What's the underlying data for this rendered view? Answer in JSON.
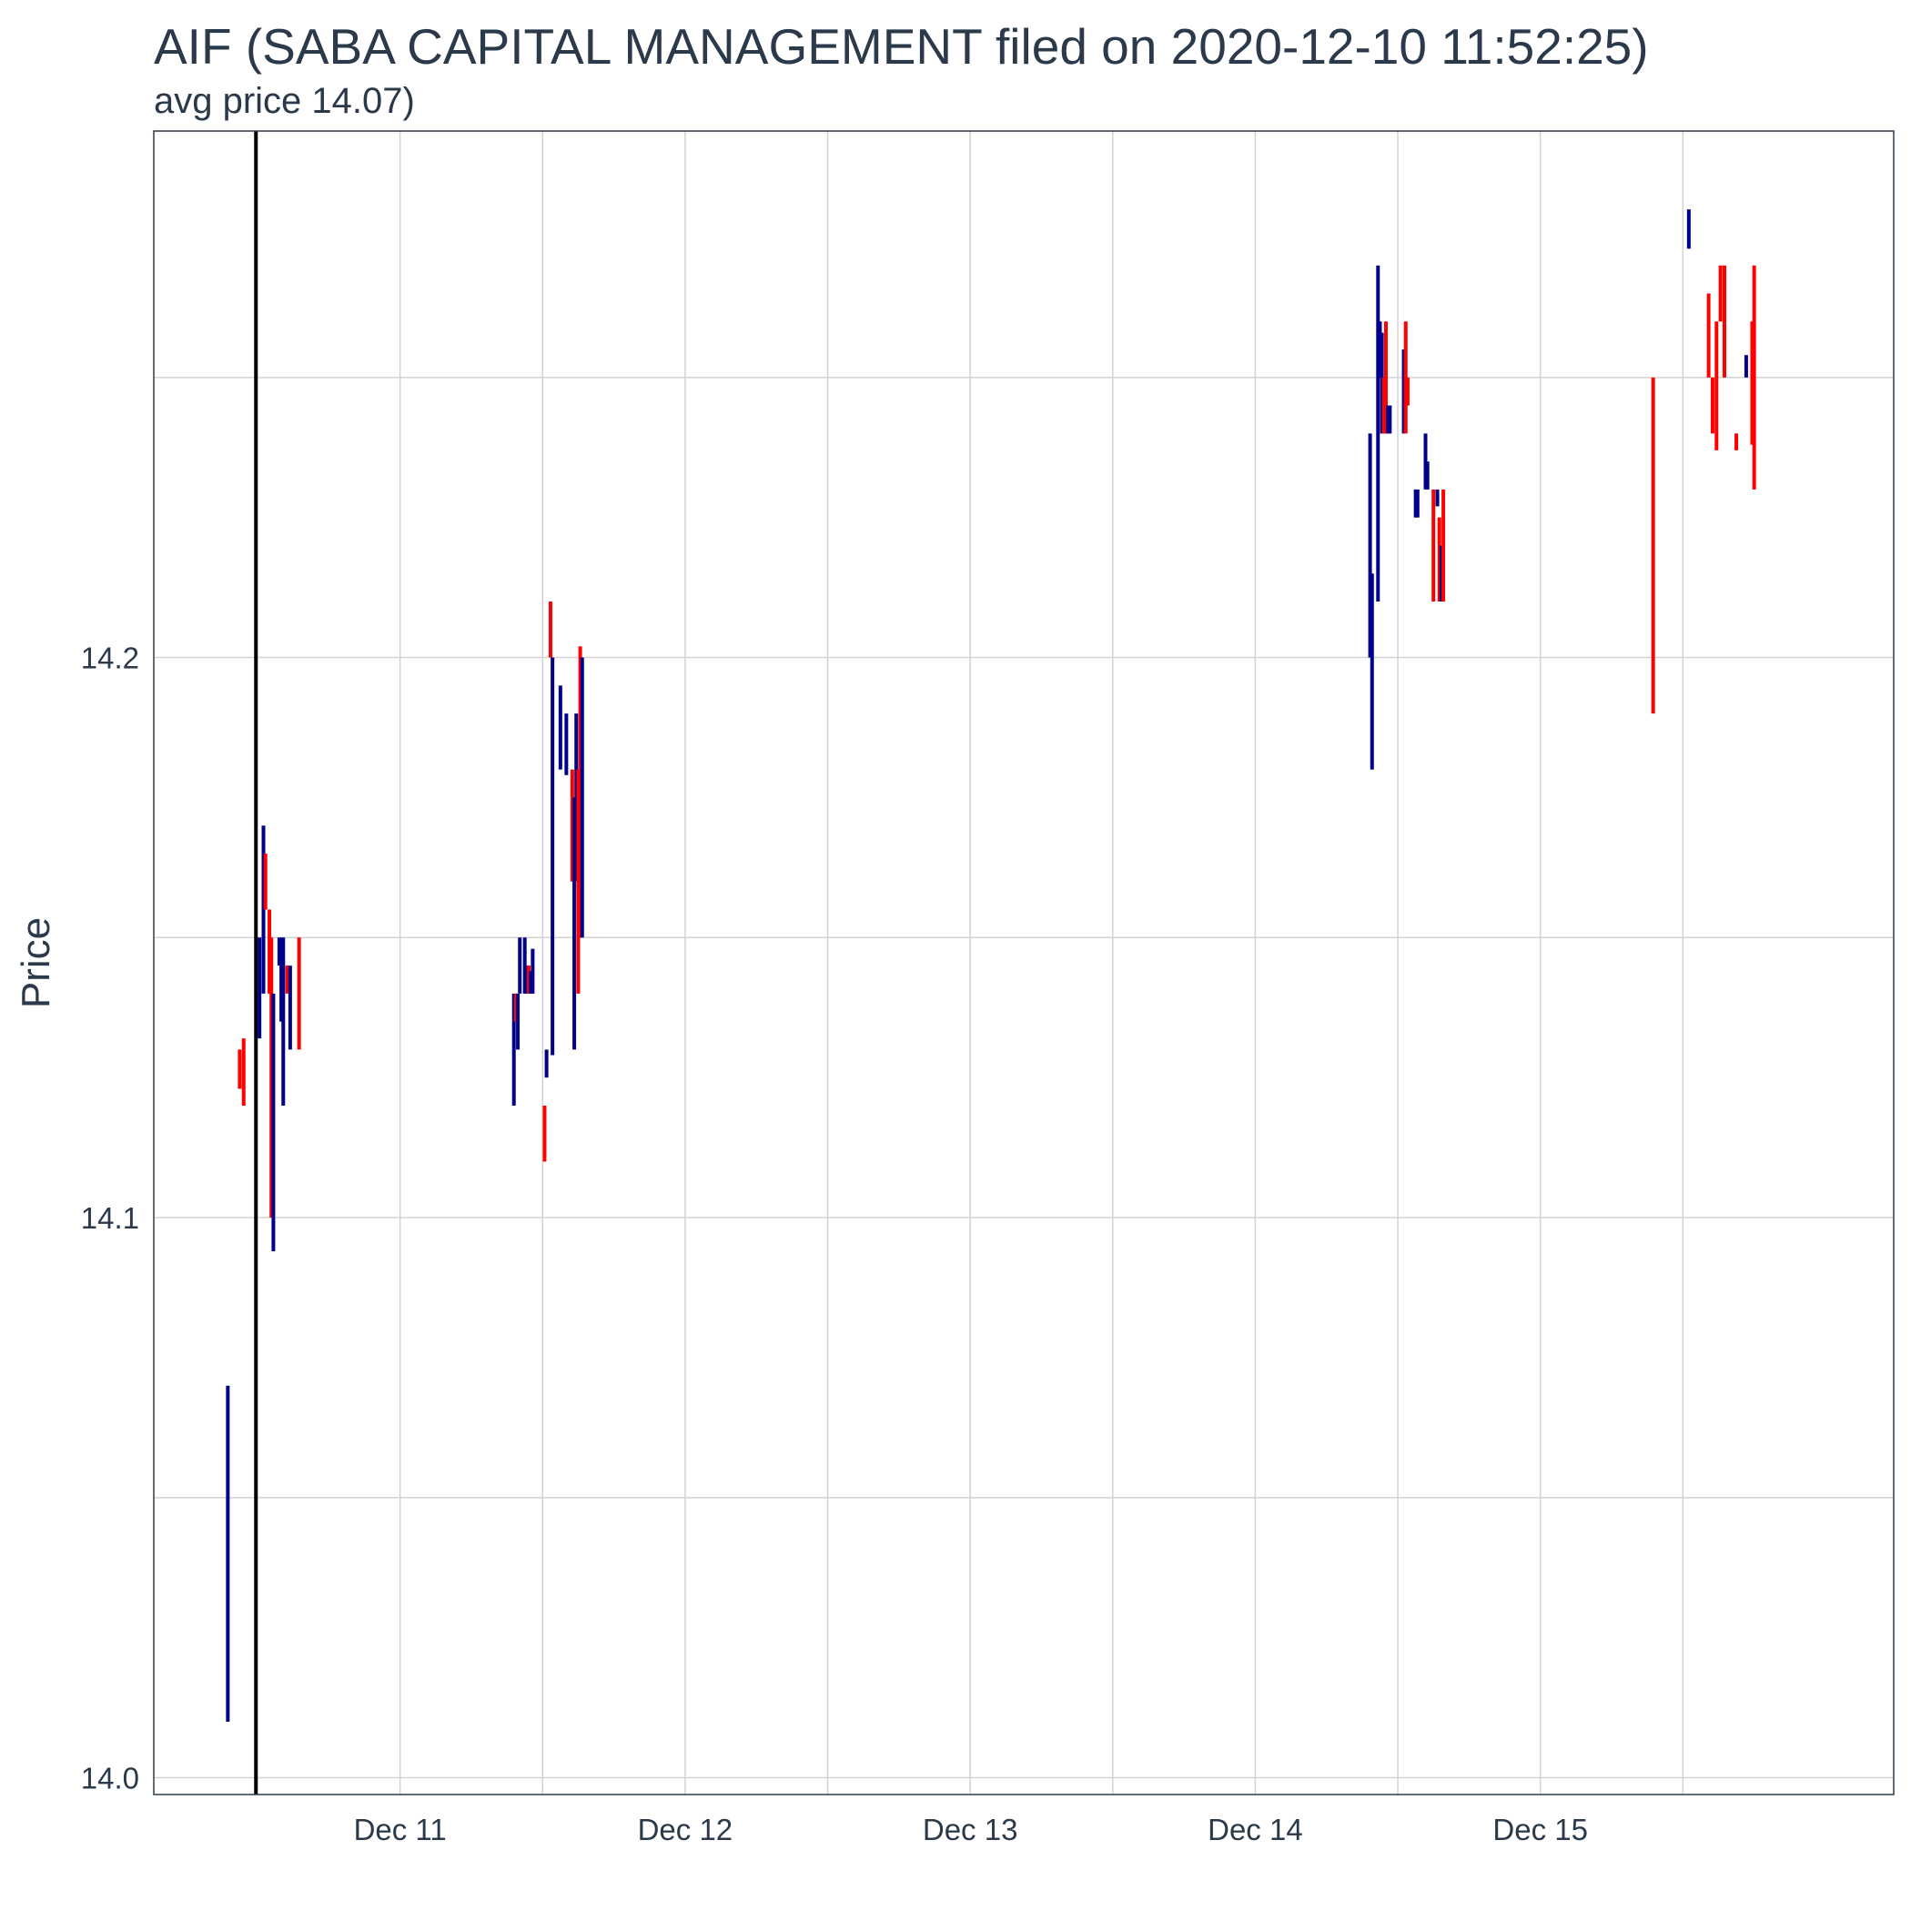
{
  "chart_data": {
    "type": "ohlc",
    "title": "AIF (SABA CAPITAL MANAGEMENT filed on 2020-12-10 11:52:25)",
    "subtitle": "avg price 14.07)",
    "ylabel": "Price",
    "xlabel": "",
    "ylim": [
      13.997,
      14.294
    ],
    "xlim": [
      "2020-12-10 03:16",
      "2020-12-16 05:45"
    ],
    "y_ticks": [
      14.0,
      14.1,
      14.2
    ],
    "y_minor_ticks": [
      14.05,
      14.15,
      14.25
    ],
    "x_ticks": [
      {
        "x": "2020-12-11 00:00",
        "label": "Dec 11"
      },
      {
        "x": "2020-12-12 00:00",
        "label": "Dec 12"
      },
      {
        "x": "2020-12-13 00:00",
        "label": "Dec 13"
      },
      {
        "x": "2020-12-14 00:00",
        "label": "Dec 14"
      },
      {
        "x": "2020-12-15 00:00",
        "label": "Dec 15"
      }
    ],
    "x_minor_ticks": [
      "2020-12-11 12:00",
      "2020-12-12 12:00",
      "2020-12-13 12:00",
      "2020-12-14 12:00",
      "2020-12-15 12:00"
    ],
    "grid": true,
    "legend": "none",
    "colors": {
      "up": "#00008b",
      "down": "#ff0000",
      "filing_line": "#000000",
      "grid": "#d3d3d3",
      "panel_border": "#2b3a4a"
    },
    "filing_marker": {
      "x": "2020-12-10 11:52"
    },
    "bars": [
      {
        "x": "2020-12-10 09:30",
        "low": 14.01,
        "high": 14.07,
        "dir": "up"
      },
      {
        "x": "2020-12-10 10:30",
        "low": 14.123,
        "high": 14.13,
        "dir": "down"
      },
      {
        "x": "2020-12-10 10:50",
        "low": 14.12,
        "high": 14.132,
        "dir": "down"
      },
      {
        "x": "2020-12-10 12:10",
        "low": 14.132,
        "high": 14.15,
        "dir": "up"
      },
      {
        "x": "2020-12-10 12:30",
        "low": 14.14,
        "high": 14.17,
        "dir": "up"
      },
      {
        "x": "2020-12-10 12:40",
        "low": 14.155,
        "high": 14.165,
        "dir": "down"
      },
      {
        "x": "2020-12-10 13:00",
        "low": 14.14,
        "high": 14.155,
        "dir": "down"
      },
      {
        "x": "2020-12-10 13:10",
        "low": 14.1,
        "high": 14.15,
        "dir": "down"
      },
      {
        "x": "2020-12-10 13:20",
        "low": 14.094,
        "high": 14.14,
        "dir": "up"
      },
      {
        "x": "2020-12-10 13:50",
        "low": 14.145,
        "high": 14.15,
        "dir": "up"
      },
      {
        "x": "2020-12-10 14:00",
        "low": 14.135,
        "high": 14.15,
        "dir": "up"
      },
      {
        "x": "2020-12-10 14:10",
        "low": 14.12,
        "high": 14.15,
        "dir": "up"
      },
      {
        "x": "2020-12-10 14:30",
        "low": 14.14,
        "high": 14.145,
        "dir": "down"
      },
      {
        "x": "2020-12-10 14:45",
        "low": 14.13,
        "high": 14.145,
        "dir": "up"
      },
      {
        "x": "2020-12-10 15:30",
        "low": 14.13,
        "high": 14.15,
        "dir": "down"
      },
      {
        "x": "2020-12-11 09:35",
        "low": 14.12,
        "high": 14.14,
        "dir": "up"
      },
      {
        "x": "2020-12-11 09:45",
        "low": 14.135,
        "high": 14.14,
        "dir": "down"
      },
      {
        "x": "2020-12-11 09:55",
        "low": 14.13,
        "high": 14.14,
        "dir": "up"
      },
      {
        "x": "2020-12-11 10:05",
        "low": 14.14,
        "high": 14.15,
        "dir": "up"
      },
      {
        "x": "2020-12-11 10:30",
        "low": 14.14,
        "high": 14.15,
        "dir": "up"
      },
      {
        "x": "2020-12-11 10:40",
        "low": 14.14,
        "high": 14.145,
        "dir": "up"
      },
      {
        "x": "2020-12-11 10:50",
        "low": 14.14,
        "high": 14.145,
        "dir": "down"
      },
      {
        "x": "2020-12-11 11:00",
        "low": 14.14,
        "high": 14.144,
        "dir": "up"
      },
      {
        "x": "2020-12-11 11:10",
        "low": 14.14,
        "high": 14.148,
        "dir": "up"
      },
      {
        "x": "2020-12-11 12:10",
        "low": 14.11,
        "high": 14.12,
        "dir": "down"
      },
      {
        "x": "2020-12-11 12:20",
        "low": 14.125,
        "high": 14.13,
        "dir": "up"
      },
      {
        "x": "2020-12-11 12:40",
        "low": 14.2,
        "high": 14.21,
        "dir": "down"
      },
      {
        "x": "2020-12-11 12:50",
        "low": 14.129,
        "high": 14.2,
        "dir": "up"
      },
      {
        "x": "2020-12-11 13:30",
        "low": 14.18,
        "high": 14.195,
        "dir": "up"
      },
      {
        "x": "2020-12-11 14:00",
        "low": 14.179,
        "high": 14.19,
        "dir": "up"
      },
      {
        "x": "2020-12-11 14:30",
        "low": 14.16,
        "high": 14.18,
        "dir": "down"
      },
      {
        "x": "2020-12-11 14:40",
        "low": 14.13,
        "high": 14.175,
        "dir": "up"
      },
      {
        "x": "2020-12-11 14:50",
        "low": 14.16,
        "high": 14.19,
        "dir": "up"
      },
      {
        "x": "2020-12-11 15:00",
        "low": 14.14,
        "high": 14.18,
        "dir": "down"
      },
      {
        "x": "2020-12-11 15:10",
        "low": 14.15,
        "high": 14.202,
        "dir": "down"
      },
      {
        "x": "2020-12-11 15:20",
        "low": 14.15,
        "high": 14.2,
        "dir": "up"
      },
      {
        "x": "2020-12-14 09:40",
        "low": 14.2,
        "high": 14.24,
        "dir": "up"
      },
      {
        "x": "2020-12-14 09:50",
        "low": 14.18,
        "high": 14.215,
        "dir": "up"
      },
      {
        "x": "2020-12-14 10:20",
        "low": 14.21,
        "high": 14.27,
        "dir": "up"
      },
      {
        "x": "2020-12-14 10:30",
        "low": 14.25,
        "high": 14.26,
        "dir": "up"
      },
      {
        "x": "2020-12-14 10:40",
        "low": 14.24,
        "high": 14.258,
        "dir": "up"
      },
      {
        "x": "2020-12-14 10:50",
        "low": 14.24,
        "high": 14.25,
        "dir": "down"
      },
      {
        "x": "2020-12-14 11:00",
        "low": 14.24,
        "high": 14.26,
        "dir": "down"
      },
      {
        "x": "2020-12-14 11:10",
        "low": 14.24,
        "high": 14.245,
        "dir": "up"
      },
      {
        "x": "2020-12-14 11:20",
        "low": 14.24,
        "high": 14.245,
        "dir": "up"
      },
      {
        "x": "2020-12-14 12:30",
        "low": 14.24,
        "high": 14.255,
        "dir": "up"
      },
      {
        "x": "2020-12-14 12:40",
        "low": 14.24,
        "high": 14.26,
        "dir": "down"
      },
      {
        "x": "2020-12-14 12:50",
        "low": 14.245,
        "high": 14.25,
        "dir": "down"
      },
      {
        "x": "2020-12-14 13:30",
        "low": 14.225,
        "high": 14.23,
        "dir": "up"
      },
      {
        "x": "2020-12-14 13:40",
        "low": 14.225,
        "high": 14.23,
        "dir": "up"
      },
      {
        "x": "2020-12-14 14:20",
        "low": 14.23,
        "high": 14.24,
        "dir": "up"
      },
      {
        "x": "2020-12-14 14:30",
        "low": 14.23,
        "high": 14.235,
        "dir": "up"
      },
      {
        "x": "2020-12-14 15:00",
        "low": 14.21,
        "high": 14.23,
        "dir": "down"
      },
      {
        "x": "2020-12-14 15:20",
        "low": 14.227,
        "high": 14.23,
        "dir": "up"
      },
      {
        "x": "2020-12-14 15:30",
        "low": 14.21,
        "high": 14.225,
        "dir": "down"
      },
      {
        "x": "2020-12-14 15:40",
        "low": 14.21,
        "high": 14.22,
        "dir": "up"
      },
      {
        "x": "2020-12-14 15:50",
        "low": 14.21,
        "high": 14.23,
        "dir": "down"
      },
      {
        "x": "2020-12-15 09:30",
        "low": 14.19,
        "high": 14.25,
        "dir": "down"
      },
      {
        "x": "2020-12-15 12:30",
        "low": 14.273,
        "high": 14.28,
        "dir": "up"
      },
      {
        "x": "2020-12-15 14:10",
        "low": 14.25,
        "high": 14.265,
        "dir": "down"
      },
      {
        "x": "2020-12-15 14:30",
        "low": 14.24,
        "high": 14.25,
        "dir": "down"
      },
      {
        "x": "2020-12-15 14:50",
        "low": 14.237,
        "high": 14.26,
        "dir": "down"
      },
      {
        "x": "2020-12-15 15:10",
        "low": 14.26,
        "high": 14.27,
        "dir": "down"
      },
      {
        "x": "2020-12-15 15:30",
        "low": 14.25,
        "high": 14.27,
        "dir": "down"
      },
      {
        "x": "2020-12-15 16:30",
        "low": 14.237,
        "high": 14.24,
        "dir": "down"
      },
      {
        "x": "2020-12-15 17:20",
        "low": 14.25,
        "high": 14.254,
        "dir": "up"
      },
      {
        "x": "2020-12-15 17:50",
        "low": 14.238,
        "high": 14.26,
        "dir": "down"
      },
      {
        "x": "2020-12-15 18:00",
        "low": 14.23,
        "high": 14.27,
        "dir": "down"
      }
    ]
  }
}
